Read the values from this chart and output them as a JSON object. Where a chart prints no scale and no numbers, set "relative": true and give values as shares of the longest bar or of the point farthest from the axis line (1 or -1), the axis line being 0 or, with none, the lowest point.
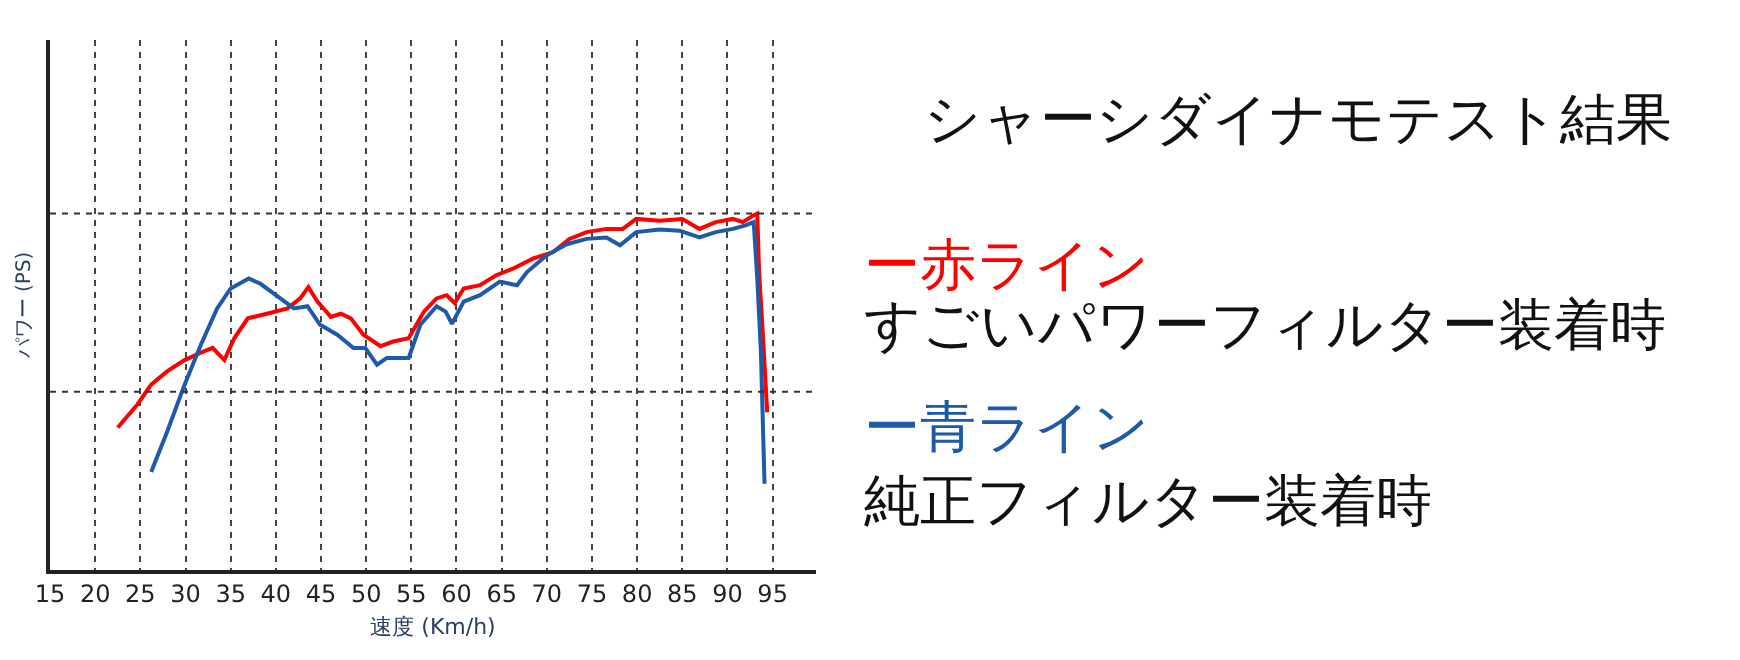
{
  "chart_data": {
    "type": "line",
    "title": "シャーシダイナモテスト結果",
    "xlabel": "速度 (Km/h)",
    "ylabel": "パワー (PS)",
    "relative": true,
    "xlim": [
      15,
      99.8
    ],
    "xticks": [
      15,
      20,
      25,
      30,
      35,
      40,
      45,
      50,
      55,
      60,
      65,
      70,
      75,
      80,
      85,
      90,
      95
    ],
    "annotations": [
      "すごいパワーフィルター装着時",
      "純正フィルター装着時"
    ],
    "grid": "x",
    "legend": "right",
    "marker": "none",
    "line_style": "solid",
    "ref_lines": [
      {
        "axis": "y",
        "value": 1.0,
        "line_style": "dotted",
        "color": "#333333"
      },
      {
        "axis": "y",
        "value": 0.5,
        "line_style": "dotted",
        "color": "#333333"
      }
    ],
    "series": [
      {
        "name": "ー赤ライン",
        "color": "#ff0000",
        "x": [
          22.5,
          24.7,
          26.2,
          28,
          29.9,
          31.7,
          33,
          34.3,
          35.4,
          36.9,
          39,
          41.3,
          42.7,
          43.6,
          44.6,
          46.1,
          47.2,
          48.3,
          49.7,
          51.6,
          53,
          54.7,
          56.4,
          57.8,
          58.9,
          59.8,
          60.8,
          62.6,
          64.4,
          66.3,
          68.5,
          70.7,
          72.5,
          74.4,
          76.6,
          78.4,
          79.9,
          82.5,
          85,
          86.9,
          88.7,
          90.6,
          91.7,
          92.8,
          93.3,
          93.5,
          93.9,
          94.4
        ],
        "values": [
          0.4,
          0.465,
          0.52,
          0.558,
          0.589,
          0.61,
          0.623,
          0.589,
          0.65,
          0.706,
          0.719,
          0.734,
          0.762,
          0.794,
          0.753,
          0.71,
          0.719,
          0.706,
          0.66,
          0.628,
          0.641,
          0.65,
          0.725,
          0.762,
          0.771,
          0.749,
          0.79,
          0.799,
          0.827,
          0.846,
          0.874,
          0.892,
          0.929,
          0.948,
          0.957,
          0.957,
          0.985,
          0.98,
          0.985,
          0.957,
          0.976,
          0.985,
          0.976,
          0.994,
          1.0,
          0.836,
          0.669,
          0.442
        ]
      },
      {
        "name": "ー青ライン",
        "color": "#1f5aa8",
        "x": [
          26.2,
          28,
          29.9,
          31.7,
          33.5,
          35,
          37,
          38.3,
          40.5,
          42,
          43.5,
          44.9,
          46.8,
          48.6,
          49.9,
          51.2,
          52.3,
          54.7,
          56,
          57.8,
          58.8,
          59.5,
          60.8,
          62.6,
          64.8,
          66.7,
          67.8,
          70,
          72.2,
          74.4,
          76.6,
          78.1,
          79.9,
          82.5,
          84.7,
          86.9,
          88.7,
          90.6,
          92,
          92.9,
          93.3,
          93.7,
          94.1
        ],
        "values": [
          0.275,
          0.39,
          0.52,
          0.632,
          0.734,
          0.79,
          0.818,
          0.803,
          0.762,
          0.734,
          0.74,
          0.688,
          0.66,
          0.623,
          0.623,
          0.576,
          0.595,
          0.595,
          0.688,
          0.74,
          0.725,
          0.691,
          0.753,
          0.771,
          0.809,
          0.799,
          0.836,
          0.883,
          0.914,
          0.929,
          0.933,
          0.911,
          0.948,
          0.955,
          0.952,
          0.933,
          0.948,
          0.957,
          0.967,
          0.976,
          0.818,
          0.613,
          0.242
        ]
      }
    ]
  }
}
